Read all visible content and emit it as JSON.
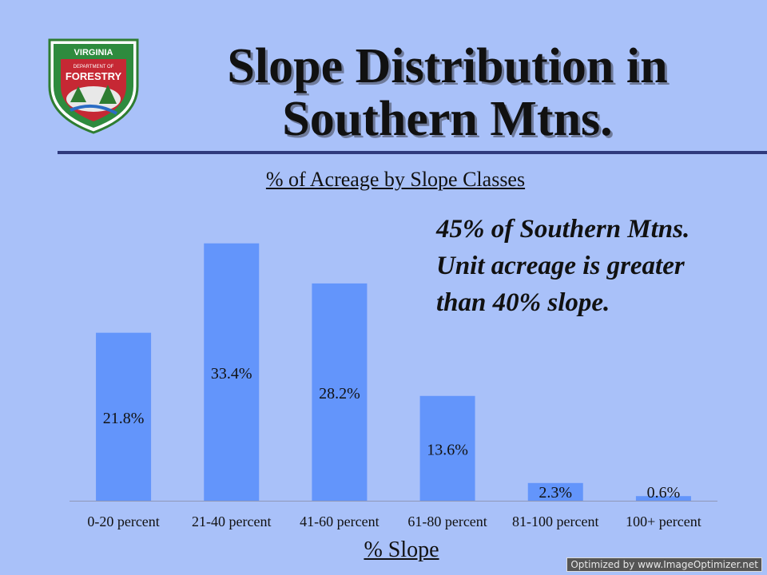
{
  "logo": {
    "icon": "virginia-department-of-forestry-seal-icon",
    "text_top": "VIRGINIA",
    "text_mid": "DEPARTMENT OF",
    "text_main": "FORESTRY"
  },
  "title_line1": "Slope Distribution in",
  "title_line2": "Southern Mtns.",
  "annotation": {
    "line1": "45% of Southern Mtns.",
    "line2": "Unit acreage is greater",
    "line3": "than 40% slope."
  },
  "watermark": "Optimized by www.ImageOptimizer.net",
  "colors": {
    "background": "#a9c1f9",
    "bar": "#6395fb",
    "rule": "#2f3a7d"
  },
  "chart_data": {
    "type": "bar",
    "title": "% of Acreage by Slope Classes",
    "xlabel": "% Slope",
    "ylabel": "",
    "categories": [
      "0-20 percent",
      "21-40 percent",
      "41-60 percent",
      "61-80 percent",
      "81-100 percent",
      "100+ percent"
    ],
    "values": [
      21.8,
      33.4,
      28.2,
      13.6,
      2.3,
      0.6
    ],
    "data_labels": [
      "21.8%",
      "33.4%",
      "28.2%",
      "13.6%",
      "2.3%",
      "0.6%"
    ],
    "ylim": [
      0,
      37
    ],
    "grid": false,
    "legend": "none"
  }
}
